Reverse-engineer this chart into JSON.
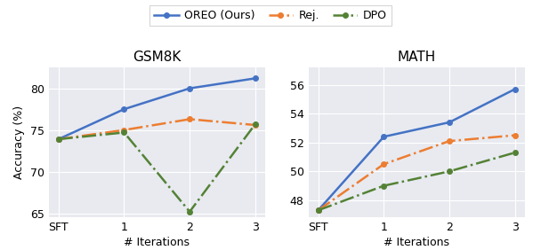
{
  "gsm8k": {
    "title": "GSM8K",
    "x_labels": [
      "SFT",
      "1",
      "2",
      "3"
    ],
    "x_values": [
      0,
      1,
      2,
      3
    ],
    "oreo": [
      73.9,
      77.5,
      80.0,
      81.2
    ],
    "rej": [
      73.9,
      75.0,
      76.3,
      75.6
    ],
    "dpo": [
      73.9,
      74.7,
      65.2,
      75.7
    ],
    "ylim": [
      64.5,
      82.5
    ],
    "yticks": [
      65,
      70,
      75,
      80
    ]
  },
  "math": {
    "title": "MATH",
    "x_labels": [
      "SFT",
      "1",
      "2",
      "3"
    ],
    "x_values": [
      0,
      1,
      2,
      3
    ],
    "oreo": [
      47.3,
      52.4,
      53.4,
      55.7
    ],
    "rej": [
      47.3,
      50.5,
      52.1,
      52.5
    ],
    "dpo": [
      47.3,
      49.0,
      50.0,
      51.3
    ],
    "ylim": [
      46.8,
      57.2
    ],
    "yticks": [
      48,
      50,
      52,
      54,
      56
    ]
  },
  "colors": {
    "oreo": "#4472C4",
    "rej": "#ED7D31",
    "dpo": "#548235"
  },
  "legend": {
    "oreo_label": "OREO (Ours)",
    "rej_label": "Rej.",
    "dpo_label": "DPO"
  },
  "ylabel": "Accuracy (%)",
  "xlabel": "# Iterations",
  "bg_color": "#E8EAF0",
  "fig_bg": "#FFFFFF"
}
